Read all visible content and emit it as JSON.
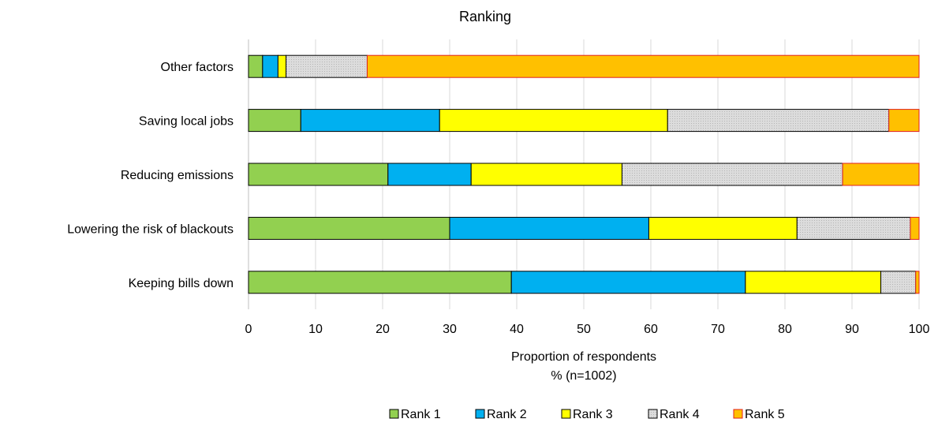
{
  "chart_data": {
    "type": "bar",
    "orientation": "horizontal",
    "stacked": true,
    "title": "Ranking",
    "xlabel_lines": [
      "Proportion of respondents",
      "% (n=1002)"
    ],
    "xlim": [
      0,
      100
    ],
    "xticks": [
      0,
      10,
      20,
      30,
      40,
      50,
      60,
      70,
      80,
      90,
      100
    ],
    "grid": "vertical",
    "legend_position": "bottom",
    "categories": [
      "Other factors",
      "Saving local jobs",
      "Reducing emissions",
      "Lowering the risk of blackouts",
      "Keeping bills down"
    ],
    "series": [
      {
        "name": "Rank 1",
        "color": "#92d050",
        "values": [
          2.1,
          7.8,
          20.8,
          30.0,
          39.2
        ]
      },
      {
        "name": "Rank 2",
        "color": "#00b0f0",
        "values": [
          2.3,
          20.7,
          12.4,
          29.7,
          34.9
        ]
      },
      {
        "name": "Rank 3",
        "color": "#ffff00",
        "values": [
          1.2,
          34.0,
          22.5,
          22.1,
          20.2
        ]
      },
      {
        "name": "Rank 4",
        "color": "#d9d9d9",
        "values": [
          12.1,
          33.0,
          32.9,
          16.9,
          5.2
        ]
      },
      {
        "name": "Rank 5",
        "color": "#ffc000",
        "values": [
          82.3,
          4.5,
          11.4,
          1.3,
          0.5
        ]
      }
    ]
  }
}
